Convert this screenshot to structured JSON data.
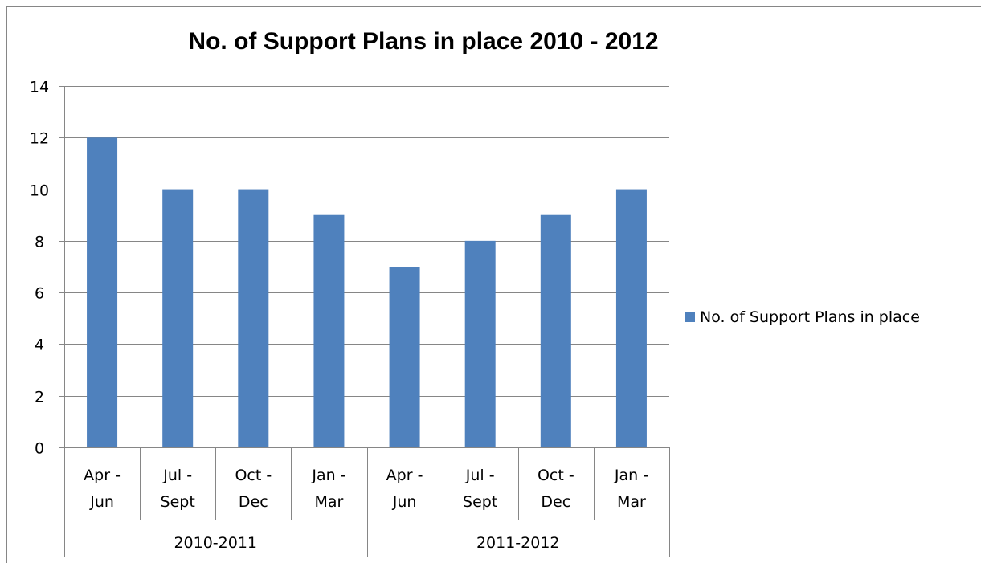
{
  "chart_data": {
    "type": "bar",
    "title": "No. of Support Plans in place 2010 - 2012",
    "xlabel": "",
    "ylabel": "",
    "ylim": [
      0,
      14
    ],
    "yticks": [
      0,
      2,
      4,
      6,
      8,
      10,
      12,
      14
    ],
    "grid": true,
    "legend_position": "right",
    "categories": [
      [
        "Apr -",
        "Jun"
      ],
      [
        "Jul -",
        "Sept"
      ],
      [
        "Oct -",
        "Dec"
      ],
      [
        "Jan -",
        "Mar"
      ],
      [
        "Apr -",
        "Jun"
      ],
      [
        "Jul -",
        "Sept"
      ],
      [
        "Oct -",
        "Dec"
      ],
      [
        "Jan -",
        "Mar"
      ]
    ],
    "groups": [
      {
        "label": "2010-2011",
        "count": 4
      },
      {
        "label": "2011-2012",
        "count": 4
      }
    ],
    "series": [
      {
        "name": "No. of Support Plans in place",
        "color": "#4f81bd",
        "values": [
          12,
          10,
          10,
          9,
          7,
          8,
          9,
          10
        ]
      }
    ]
  }
}
